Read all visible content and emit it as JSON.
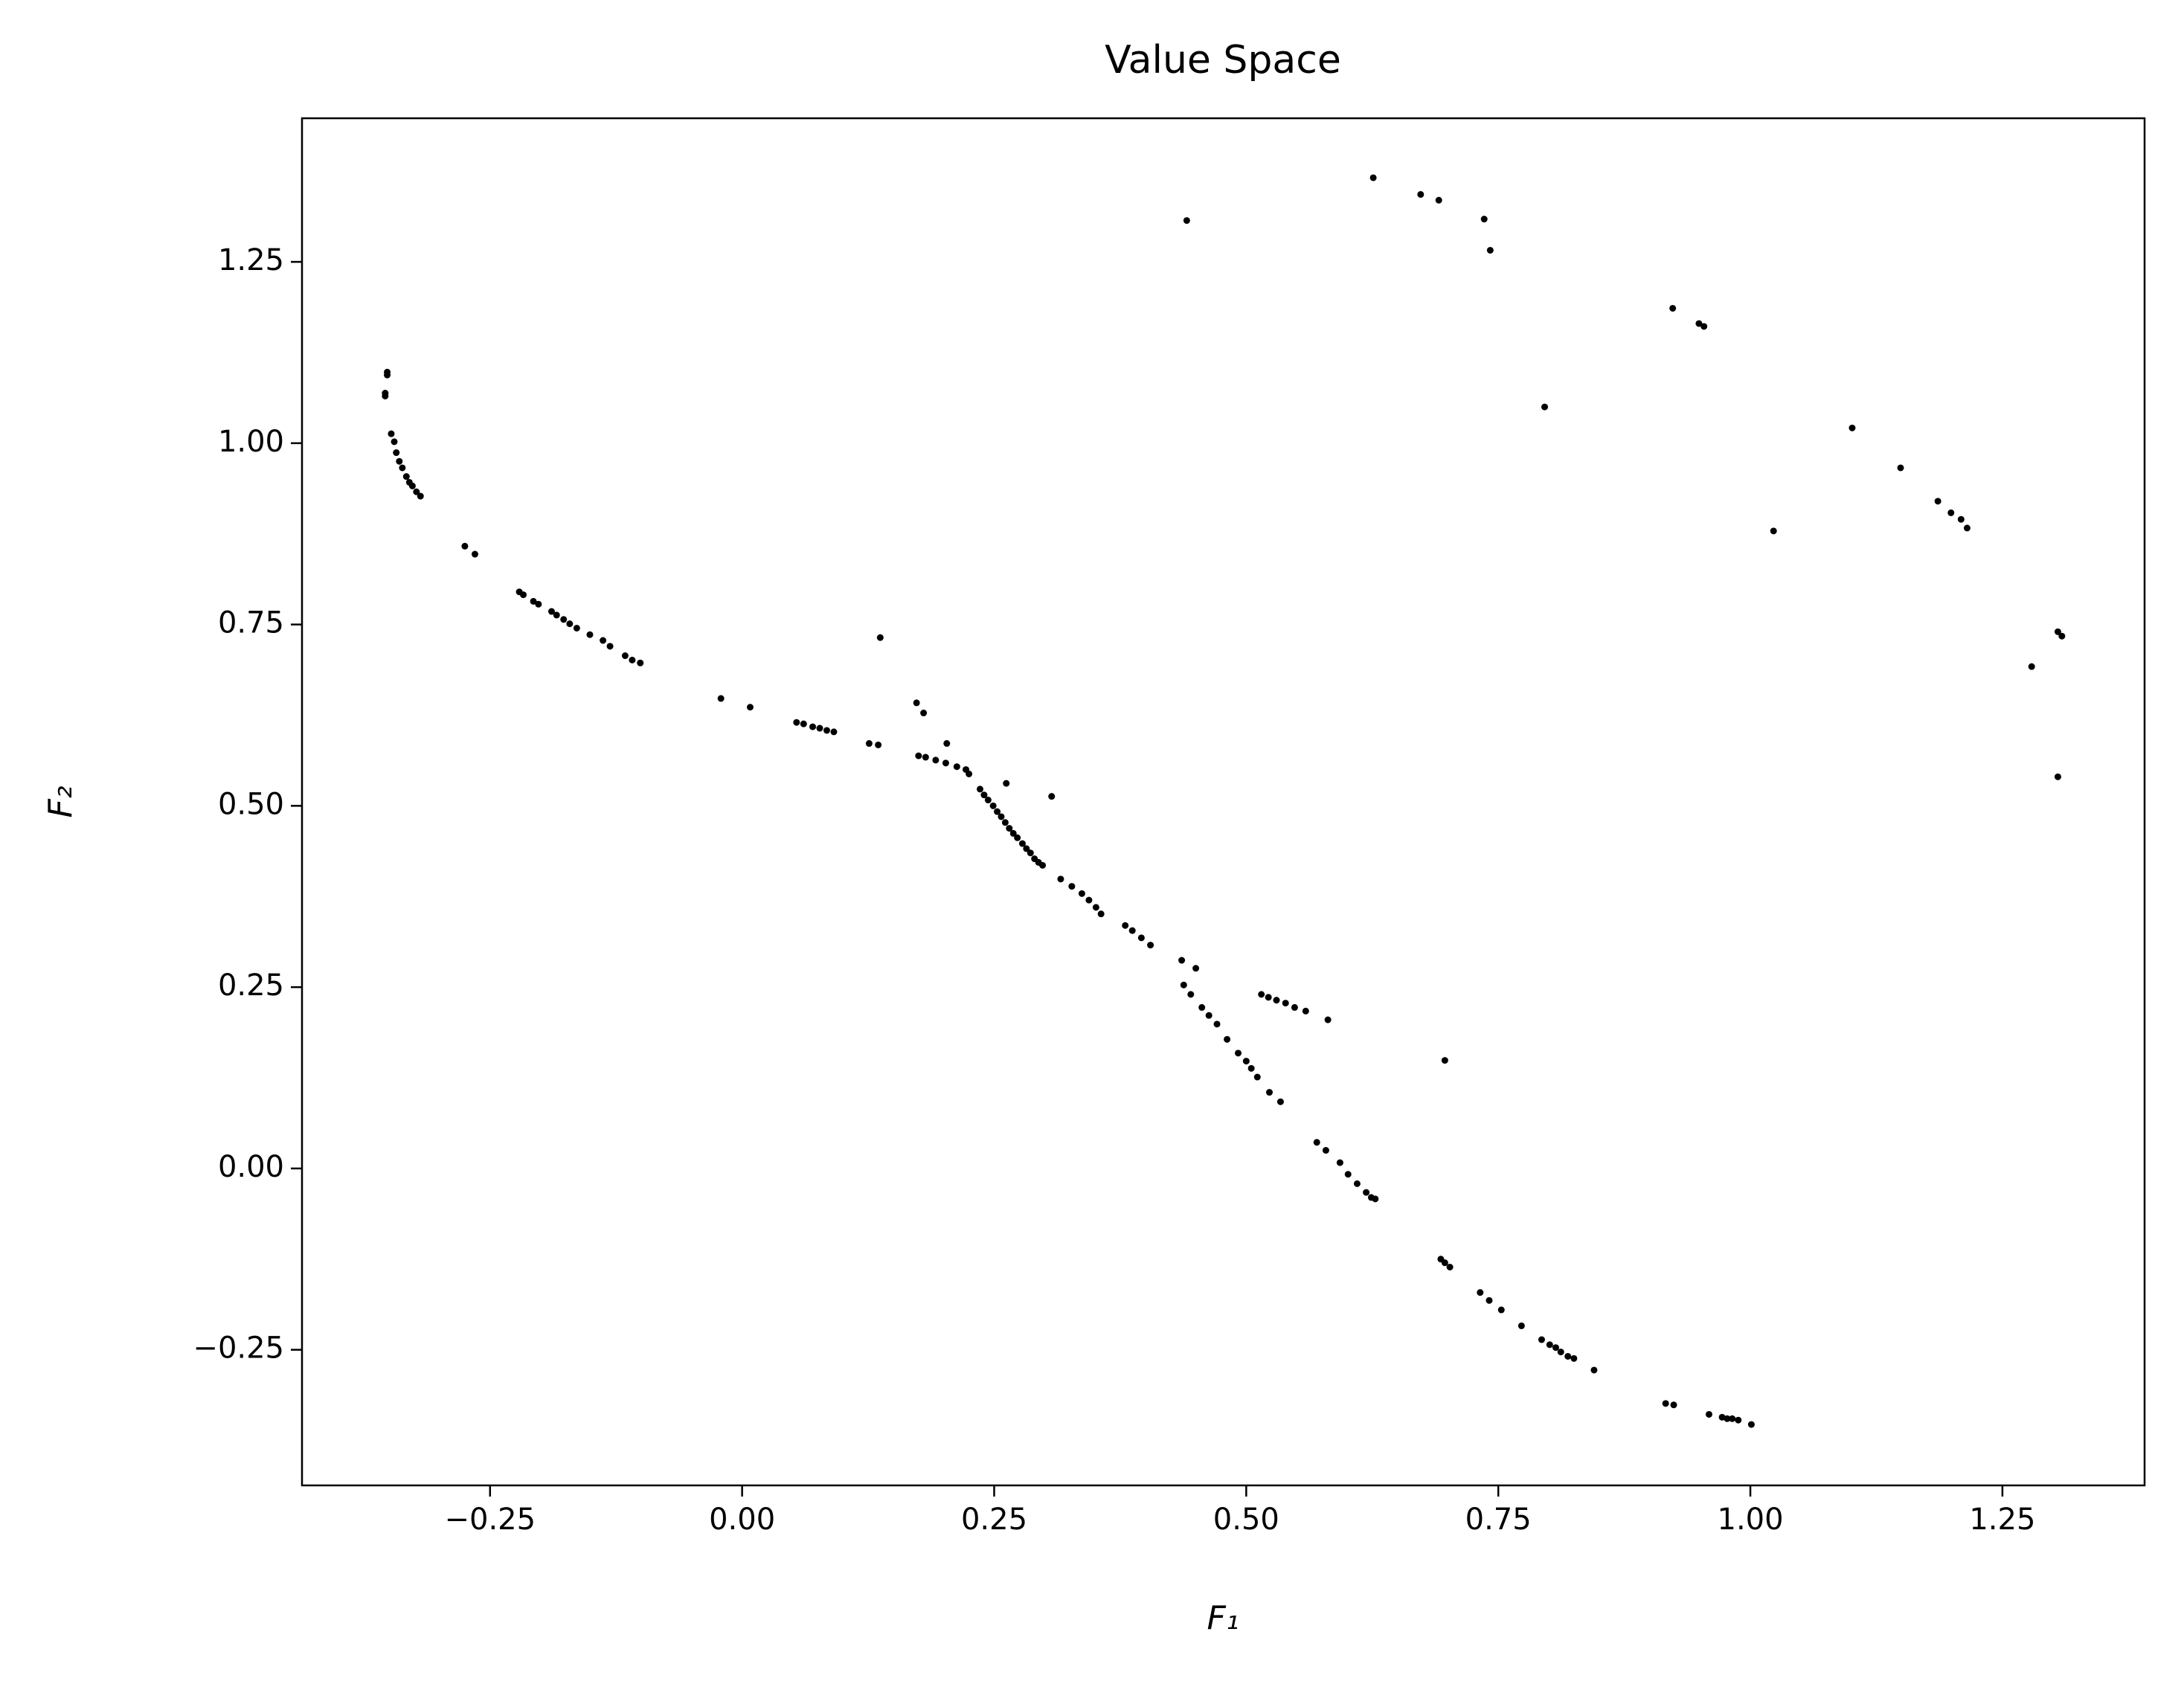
{
  "chart_data": {
    "type": "scatter",
    "title": "Value Space",
    "xlabel": "F₁",
    "ylabel": "F₂",
    "color": "#000000",
    "xlim": [
      -0.4365,
      1.391
    ],
    "ylim": [
      -0.437,
      1.448
    ],
    "xticks": [
      {
        "value": -0.25,
        "label": "−0.25"
      },
      {
        "value": 0,
        "label": "0.00"
      },
      0.25,
      {
        "value": 0.5,
        "label": "0.50"
      },
      0.75,
      {
        "value": 1,
        "label": "1.00"
      },
      1.25
    ],
    "yticks": [
      {
        "value": -0.25,
        "label": "−0.25"
      },
      {
        "value": 0,
        "label": "0.00"
      },
      0.25,
      {
        "value": 0.5,
        "label": "0.50"
      },
      0.75,
      {
        "value": 1,
        "label": "1.00"
      },
      1.25
    ],
    "x": [
      -0.352,
      -0.352,
      -0.354,
      -0.354,
      -0.348,
      -0.345,
      -0.343,
      -0.34,
      -0.337,
      -0.333,
      -0.33,
      -0.327,
      -0.323,
      -0.319,
      -0.275,
      -0.265,
      -0.221,
      -0.217,
      -0.207,
      -0.202,
      -0.189,
      -0.184,
      -0.177,
      -0.171,
      -0.164,
      -0.151,
      -0.138,
      -0.131,
      -0.116,
      -0.109,
      -0.101,
      -0.021,
      0.008,
      0.054,
      0.061,
      0.07,
      0.077,
      0.084,
      0.091,
      0.126,
      0.135,
      0.137,
      0.173,
      0.18,
      0.175,
      0.182,
      0.192,
      0.202,
      0.203,
      0.213,
      0.222,
      0.225,
      0.236,
      0.24,
      0.244,
      0.249,
      0.253,
      0.257,
      0.261,
      0.265,
      0.269,
      0.273,
      0.278,
      0.282,
      0.286,
      0.29,
      0.294,
      0.298,
      0.262,
      0.307,
      0.316,
      0.327,
      0.337,
      0.344,
      0.351,
      0.356,
      0.38,
      0.387,
      0.396,
      0.405,
      0.436,
      0.45,
      0.438,
      0.445,
      0.456,
      0.463,
      0.471,
      0.481,
      0.492,
      0.5,
      0.505,
      0.511,
      0.523,
      0.534,
      0.515,
      0.522,
      0.53,
      0.539,
      0.548,
      0.559,
      0.581,
      0.697,
      0.57,
      0.579,
      0.593,
      0.601,
      0.61,
      0.619,
      0.624,
      0.628,
      0.693,
      0.697,
      0.702,
      0.732,
      0.741,
      0.753,
      0.773,
      0.793,
      0.801,
      0.807,
      0.812,
      0.819,
      0.825,
      0.845,
      0.916,
      0.924,
      0.959,
      0.972,
      0.977,
      0.982,
      0.988,
      1.001,
      0.441,
      0.626,
      0.673,
      0.691,
      0.736,
      0.742,
      0.923,
      0.949,
      0.954,
      0.796,
      1.101,
      1.149,
      1.186,
      1.199,
      1.209,
      1.215,
      1.023,
      1.305,
      1.309,
      1.279,
      1.305
    ],
    "values": [
      1.094,
      1.098,
      1.069,
      1.065,
      1.013,
      1.002,
      0.987,
      0.975,
      0.966,
      0.954,
      0.946,
      0.941,
      0.933,
      0.927,
      0.858,
      0.847,
      0.795,
      0.791,
      0.782,
      0.778,
      0.768,
      0.763,
      0.757,
      0.751,
      0.745,
      0.736,
      0.728,
      0.72,
      0.707,
      0.701,
      0.697,
      0.648,
      0.636,
      0.615,
      0.613,
      0.609,
      0.607,
      0.604,
      0.602,
      0.586,
      0.584,
      0.732,
      0.642,
      0.628,
      0.569,
      0.567,
      0.563,
      0.559,
      0.586,
      0.554,
      0.55,
      0.544,
      0.523,
      0.515,
      0.508,
      0.5,
      0.492,
      0.485,
      0.477,
      0.469,
      0.462,
      0.456,
      0.448,
      0.441,
      0.435,
      0.427,
      0.422,
      0.418,
      0.531,
      0.513,
      0.399,
      0.389,
      0.379,
      0.37,
      0.36,
      0.351,
      0.335,
      0.328,
      0.318,
      0.308,
      0.287,
      0.276,
      0.253,
      0.24,
      0.222,
      0.211,
      0.199,
      0.178,
      0.159,
      0.148,
      0.138,
      0.126,
      0.105,
      0.092,
      0.24,
      0.236,
      0.232,
      0.228,
      0.222,
      0.217,
      0.205,
      0.149,
      0.036,
      0.025,
      0.008,
      -0.008,
      -0.021,
      -0.033,
      -0.04,
      -0.042,
      -0.125,
      -0.13,
      -0.136,
      -0.171,
      -0.182,
      -0.195,
      -0.217,
      -0.236,
      -0.243,
      -0.247,
      -0.253,
      -0.259,
      -0.262,
      -0.278,
      -0.324,
      -0.326,
      -0.339,
      -0.343,
      -0.345,
      -0.345,
      -0.347,
      -0.353,
      1.307,
      1.366,
      1.343,
      1.335,
      1.309,
      1.266,
      1.186,
      1.165,
      1.161,
      1.05,
      1.021,
      0.966,
      0.92,
      0.904,
      0.895,
      0.883,
      0.879,
      0.74,
      0.734,
      0.692,
      0.54
    ]
  }
}
